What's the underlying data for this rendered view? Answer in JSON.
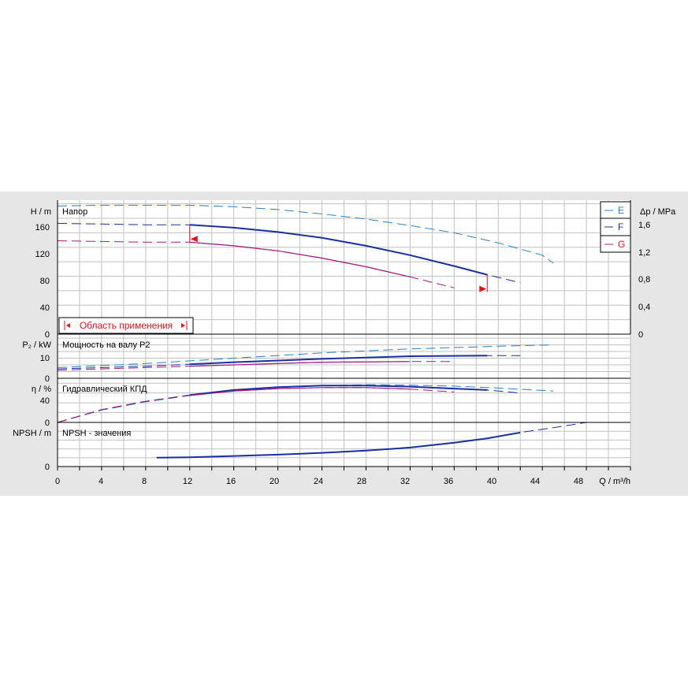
{
  "colors": {
    "E": "#2a7fbf",
    "F": "#1b2fa0",
    "G": "#a01b7c",
    "range_marker": "#e8101a",
    "grid": "#c0c0c0",
    "panel_bg": "#e6e6e6",
    "plot_bg": "#ffffff"
  },
  "legend": {
    "E": {
      "label": "E",
      "line_color": "#2a7fbf",
      "text_color": "#2a7fbf"
    },
    "F": {
      "label": "F",
      "line_color": "#1b2fa0",
      "text_color": "#1b2fa0"
    },
    "G": {
      "label": "G",
      "line_color": "#a01b7c",
      "text_color": "#e8101a"
    }
  },
  "axes": {
    "x_label": "Q / m³/h",
    "x_ticks": [
      "0",
      "4",
      "8",
      "12",
      "16",
      "20",
      "24",
      "28",
      "32",
      "36",
      "40",
      "44",
      "48"
    ],
    "head": {
      "y_label": "H / m",
      "right_label": "Δp / MPa",
      "panel_title": "Напор",
      "y_ticks": [
        "160",
        "120",
        "80",
        "40",
        "0"
      ],
      "right_ticks": [
        "1,6",
        "1,2",
        "0,8",
        "0,4",
        "0"
      ]
    },
    "power": {
      "y_label": "P₂ / kW",
      "panel_title": "Мощность на валу P2",
      "y_ticks": [
        "10",
        "0"
      ]
    },
    "eff": {
      "y_label": "η / %",
      "panel_title": "Гидравлический КПД",
      "y_ticks": [
        "40",
        "0"
      ]
    },
    "npsh": {
      "y_label": "NPSH / m",
      "panel_title": "NPSH - значения",
      "y_ticks": [
        "0"
      ]
    }
  },
  "range_label": "Область применения",
  "chart_data": {
    "type": "line",
    "x_unit": "m³/h",
    "xlim": [
      0,
      52
    ],
    "operating_range_q": [
      12,
      39
    ],
    "panels": [
      {
        "id": "head",
        "title": "Напор",
        "ylabel": "H / m",
        "ylim": [
          0,
          185
        ],
        "secondary_axis": {
          "label": "Δp / MPa",
          "ticks": [
            "0",
            "0,4",
            "0,8",
            "1,2",
            "1,6"
          ]
        },
        "series": [
          {
            "name": "E",
            "x": [
              0,
              4,
              8,
              12,
              16,
              20,
              24,
              28,
              32,
              36,
              40,
              44,
              45
            ],
            "y": [
              177,
              178,
              178,
              178,
              176,
              172,
              166,
              159,
              150,
              140,
              126,
              109,
              98
            ],
            "style": "dashed"
          },
          {
            "name": "F",
            "x": [
              0,
              4,
              8,
              12,
              16,
              20,
              24,
              28,
              32,
              36,
              39,
              42
            ],
            "y": [
              153,
              152,
              151,
              151,
              147,
              141,
              133,
              122,
              109,
              94,
              82,
              71
            ],
            "solid_range": [
              12,
              39
            ]
          },
          {
            "name": "G",
            "x": [
              0,
              4,
              8,
              12,
              16,
              20,
              24,
              28,
              32,
              36
            ],
            "y": [
              129,
              128,
              127,
              127,
              122,
              115,
              105,
              93,
              79,
              64
            ],
            "solid_range": [
              12,
              32
            ]
          }
        ]
      },
      {
        "id": "power",
        "title": "Мощность на валу P2",
        "ylabel": "P₂ / kW",
        "ylim": [
          0,
          33
        ],
        "series": [
          {
            "name": "E",
            "x": [
              0,
              8,
              16,
              24,
              32,
              40,
              45
            ],
            "y": [
              8,
              11,
              15,
              19,
              22,
              24,
              25
            ],
            "style": "dashed"
          },
          {
            "name": "F",
            "x": [
              0,
              8,
              16,
              24,
              32,
              39,
              42
            ],
            "y": [
              7,
              9,
              12,
              14.5,
              16.5,
              17,
              17
            ],
            "solid_range": [
              12,
              39
            ]
          },
          {
            "name": "G",
            "x": [
              0,
              8,
              16,
              24,
              32,
              36
            ],
            "y": [
              6,
              8,
              10,
              12,
              12.5,
              12.5
            ],
            "solid_range": [
              12,
              32
            ]
          }
        ]
      },
      {
        "id": "eff",
        "title": "Гидравлический КПД",
        "ylabel": "η / %",
        "ylim": [
          0,
          90
        ],
        "series": [
          {
            "name": "E",
            "x": [
              0,
              4,
              8,
              12,
              16,
              20,
              24,
              28,
              32,
              36,
              40,
              45
            ],
            "y": [
              0,
              25,
              42,
              55,
              65,
              71,
              75,
              77,
              76,
              74,
              70,
              64
            ],
            "style": "dashed"
          },
          {
            "name": "F",
            "x": [
              0,
              4,
              8,
              12,
              16,
              20,
              24,
              28,
              32,
              36,
              39,
              42
            ],
            "y": [
              0,
              26,
              43,
              56,
              66,
              72,
              75,
              75,
              73,
              69,
              66,
              60
            ],
            "solid_range": [
              12,
              39
            ]
          },
          {
            "name": "G",
            "x": [
              0,
              4,
              8,
              12,
              16,
              20,
              24,
              28,
              32,
              36
            ],
            "y": [
              0,
              26,
              43,
              55,
              64,
              69,
              71,
              71,
              68,
              62
            ],
            "solid_range": [
              12,
              32
            ]
          }
        ]
      },
      {
        "id": "npsh",
        "title": "NPSH - значения",
        "ylabel": "NPSH / m",
        "ylim": [
          0,
          10
        ],
        "series": [
          {
            "name": "F",
            "x": [
              9,
              12,
              16,
              20,
              24,
              28,
              32,
              36,
              39,
              42,
              45,
              48
            ],
            "y": [
              2,
              2.1,
              2.4,
              2.7,
              3.1,
              3.6,
              4.3,
              5.4,
              6.4,
              7.7,
              8.8,
              10
            ],
            "solid_range": [
              9,
              42
            ]
          }
        ]
      }
    ]
  }
}
